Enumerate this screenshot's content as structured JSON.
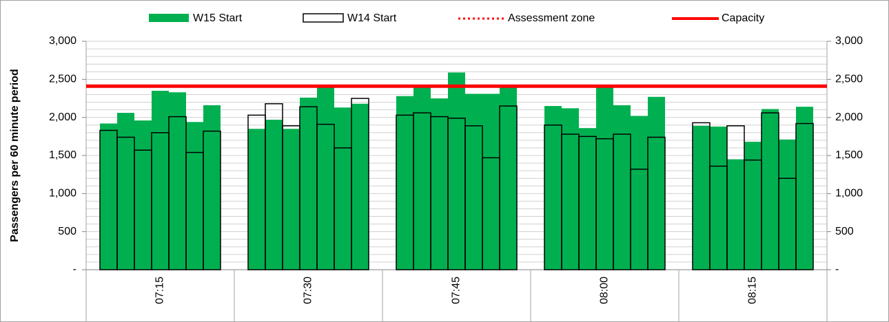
{
  "chart_data": {
    "type": "bar",
    "y_label": "Passengers per 60 minute period",
    "categories": [
      null,
      null,
      null,
      "07:15",
      null,
      null,
      null,
      null,
      null,
      null,
      "07:30",
      null,
      null,
      null,
      null,
      null,
      null,
      "07:45",
      null,
      null,
      null,
      null,
      null,
      null,
      "08:00",
      null,
      null,
      null,
      null,
      null,
      null,
      "08:15",
      null,
      null,
      null
    ],
    "group_size": 7,
    "series": [
      {
        "name": "W15 Start",
        "color": "#00b050",
        "style": "filled",
        "values": [
          1920,
          2060,
          1960,
          2350,
          2330,
          1940,
          2160,
          1850,
          1970,
          1850,
          2260,
          2420,
          2130,
          2180,
          2280,
          2400,
          2250,
          2590,
          2310,
          2310,
          2400,
          2150,
          2120,
          1860,
          2400,
          2160,
          2020,
          2270,
          1890,
          1880,
          1450,
          1680,
          2110,
          1710,
          2140
        ]
      },
      {
        "name": "W14 Start",
        "color": "#000000",
        "style": "outline",
        "values": [
          1830,
          1740,
          1570,
          1800,
          2010,
          1540,
          1820,
          2030,
          2180,
          1890,
          2140,
          1910,
          1600,
          2250,
          2030,
          2060,
          2010,
          1990,
          1890,
          1470,
          2150,
          1900,
          1780,
          1750,
          1720,
          1780,
          1320,
          1740,
          1930,
          1360,
          1890,
          1440,
          2060,
          1200,
          1920
        ]
      }
    ],
    "lines": [
      {
        "name": "Assessment zone",
        "color": "#ff0000",
        "style": "dotted"
      },
      {
        "name": "Capacity",
        "color": "#ff0000",
        "style": "solid",
        "value": 2410
      }
    ],
    "ylim": [
      0,
      3000
    ],
    "yticks": [
      {
        "value": 0,
        "label": "-"
      },
      500,
      {
        "value": 1000,
        "label": "1,000"
      },
      {
        "value": 1500,
        "label": "1,500"
      },
      {
        "value": 2000,
        "label": "2,000"
      },
      {
        "value": 2500,
        "label": "2,500"
      },
      {
        "value": 3000,
        "label": "3,000"
      }
    ],
    "y2lim": [
      0,
      3000
    ],
    "y2ticks": [
      {
        "value": 0,
        "label": "-"
      },
      500,
      {
        "value": 1000,
        "label": "1,000"
      },
      {
        "value": 1500,
        "label": "1,500"
      },
      {
        "value": 2000,
        "label": "2,000"
      },
      {
        "value": 2500,
        "label": "2,500"
      },
      {
        "value": 3000,
        "label": "3,000"
      }
    ],
    "grid": true,
    "grid_step": 100,
    "legend": "top"
  }
}
